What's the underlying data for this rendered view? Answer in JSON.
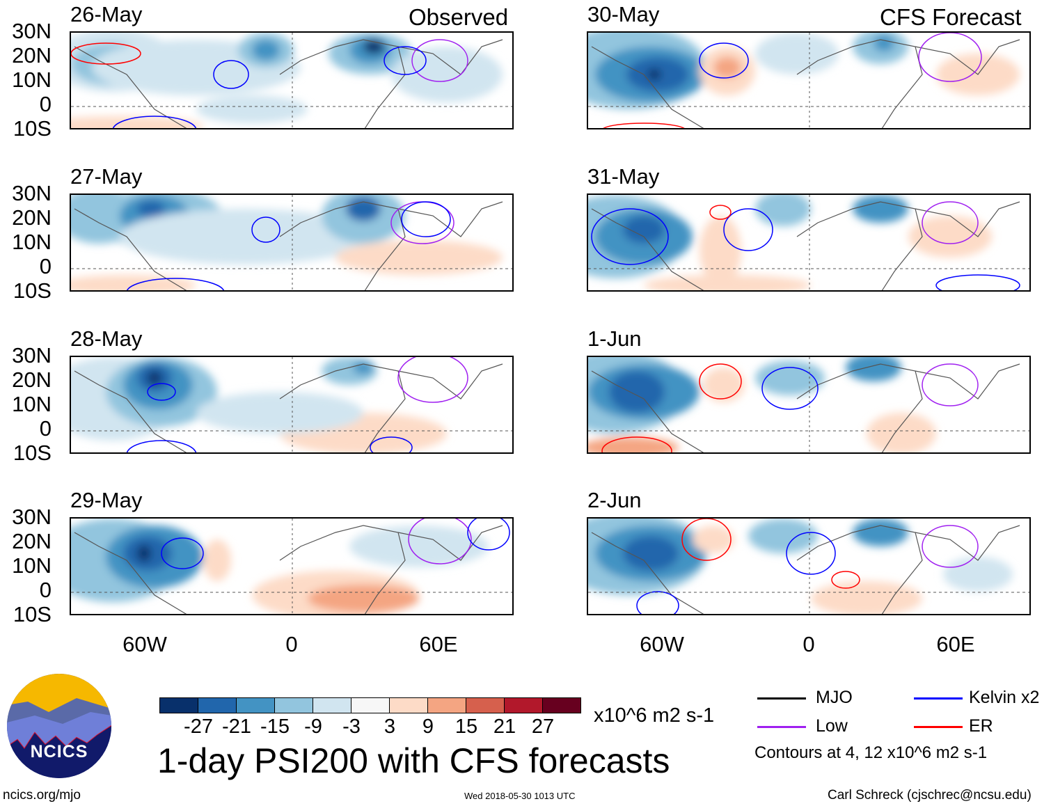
{
  "headings": {
    "observed": "Observed",
    "forecast": "CFS Forecast"
  },
  "panels": [
    {
      "date": "26-May",
      "column": "observed"
    },
    {
      "date": "27-May",
      "column": "observed"
    },
    {
      "date": "28-May",
      "column": "observed"
    },
    {
      "date": "29-May",
      "column": "observed"
    },
    {
      "date": "30-May",
      "column": "forecast"
    },
    {
      "date": "31-May",
      "column": "forecast"
    },
    {
      "date": "1-Jun",
      "column": "forecast"
    },
    {
      "date": "2-Jun",
      "column": "forecast"
    }
  ],
  "lat_labels": [
    "30N",
    "20N",
    "10N",
    "0",
    "10S"
  ],
  "lon_labels": [
    "60W",
    "0",
    "60E"
  ],
  "colorbar": {
    "colors": [
      "#08306b",
      "#2166ac",
      "#4393c3",
      "#92c5de",
      "#d1e5f0",
      "#f7f7f7",
      "#fddbc7",
      "#f4a582",
      "#d6604d",
      "#b2182b",
      "#67001f"
    ],
    "ticks": [
      "-27",
      "-21",
      "-15",
      "-9",
      "-3",
      "3",
      "9",
      "15",
      "21",
      "27"
    ],
    "units": "x10^6 m2 s-1"
  },
  "legend": {
    "items": [
      {
        "label": "MJO",
        "color": "#000000"
      },
      {
        "label": "Kelvin x2",
        "color": "#0000ff"
      },
      {
        "label": "Low",
        "color": "#a020f0"
      },
      {
        "label": "ER",
        "color": "#ff0000"
      }
    ],
    "note": "Contours at 4, 12 x10^6 m2 s-1"
  },
  "title": "1-day PSI200 with CFS forecasts",
  "logo_text": "NCICS",
  "footer": {
    "url": "ncics.org/mjo",
    "timestamp": "Wed 2018-05-30 1013 UTC",
    "credit": "Carl Schreck (cjschrec@ncsu.edu)"
  }
}
